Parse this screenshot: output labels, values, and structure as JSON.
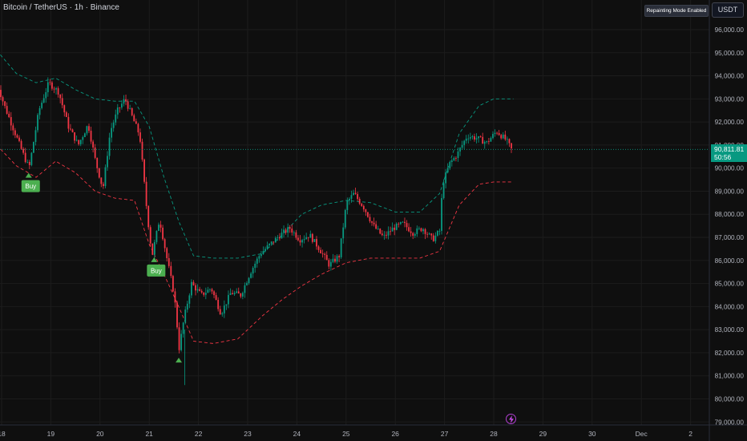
{
  "header": {
    "symbol_title": "Bitcoin / TetherUS · 1h · Binance",
    "repainting_badge": "Repainting Mode Enabled",
    "currency_button": "USDT"
  },
  "price_axis": {
    "ticks": [
      "96,000.00",
      "95,000.00",
      "94,000.00",
      "93,000.00",
      "92,000.00",
      "91,000.00",
      "90,000.00",
      "89,000.00",
      "88,000.00",
      "87,000.00",
      "86,000.00",
      "85,000.00",
      "84,000.00",
      "83,000.00",
      "82,000.00",
      "81,000.00",
      "80,000.00",
      "79,000.00"
    ]
  },
  "time_axis": {
    "ticks": [
      "18",
      "19",
      "20",
      "21",
      "22",
      "23",
      "24",
      "25",
      "26",
      "27",
      "28",
      "29",
      "30",
      "Dec",
      "2"
    ]
  },
  "current_price": {
    "price": "90,811.81",
    "countdown": "50:56"
  },
  "signals": [
    {
      "label": "Buy",
      "day": 18.55,
      "price": 89760
    },
    {
      "label": "Buy",
      "day": 21.1,
      "price": 86100
    },
    {
      "label": "",
      "day": 21.6,
      "price": 81750
    }
  ],
  "colors": {
    "background": "#0f0f0f",
    "bull": "#089981",
    "bear": "#f23645",
    "buy_label": "#4caf50",
    "upper_band": "#089981",
    "lower_band": "#f23645",
    "grid": "#1c1c1c"
  },
  "icons": {
    "alert": "lightning-icon"
  },
  "chart_data": {
    "type": "candlestick",
    "x_unit": "day of month (Nov)",
    "ylim": [
      79000,
      96500
    ],
    "price_path": [
      [
        17.9,
        94000
      ],
      [
        18.1,
        92700
      ],
      [
        18.3,
        91600
      ],
      [
        18.5,
        90500
      ],
      [
        18.6,
        90000
      ],
      [
        18.8,
        92500
      ],
      [
        19.0,
        93700
      ],
      [
        19.2,
        93300
      ],
      [
        19.4,
        91800
      ],
      [
        19.6,
        91000
      ],
      [
        19.8,
        91900
      ],
      [
        19.95,
        90300
      ],
      [
        20.1,
        89100
      ],
      [
        20.25,
        91600
      ],
      [
        20.4,
        92500
      ],
      [
        20.55,
        93000
      ],
      [
        20.7,
        92200
      ],
      [
        20.85,
        91400
      ],
      [
        21.0,
        88000
      ],
      [
        21.1,
        86200
      ],
      [
        21.25,
        87800
      ],
      [
        21.4,
        86100
      ],
      [
        21.55,
        84500
      ],
      [
        21.65,
        82200
      ],
      [
        21.75,
        83500
      ],
      [
        21.9,
        85000
      ],
      [
        22.1,
        84500
      ],
      [
        22.3,
        84800
      ],
      [
        22.5,
        83700
      ],
      [
        22.7,
        84600
      ],
      [
        22.9,
        84500
      ],
      [
        23.1,
        85500
      ],
      [
        23.3,
        86300
      ],
      [
        23.5,
        86700
      ],
      [
        23.7,
        87100
      ],
      [
        23.9,
        87400
      ],
      [
        24.1,
        86900
      ],
      [
        24.3,
        87100
      ],
      [
        24.5,
        86500
      ],
      [
        24.7,
        85800
      ],
      [
        24.9,
        86200
      ],
      [
        25.05,
        88500
      ],
      [
        25.2,
        88900
      ],
      [
        25.4,
        88300
      ],
      [
        25.6,
        87500
      ],
      [
        25.8,
        87000
      ],
      [
        26.0,
        87400
      ],
      [
        26.2,
        87600
      ],
      [
        26.4,
        87200
      ],
      [
        26.6,
        87400
      ],
      [
        26.8,
        86900
      ],
      [
        26.95,
        87300
      ],
      [
        27.0,
        89300
      ],
      [
        27.15,
        90200
      ],
      [
        27.3,
        90600
      ],
      [
        27.5,
        91400
      ],
      [
        27.7,
        91300
      ],
      [
        27.9,
        91100
      ],
      [
        28.1,
        91600
      ],
      [
        28.3,
        91200
      ],
      [
        28.4,
        90811
      ]
    ],
    "upper_band": [
      [
        17.9,
        95100
      ],
      [
        18.3,
        94100
      ],
      [
        18.7,
        93700
      ],
      [
        19.1,
        93900
      ],
      [
        19.5,
        93400
      ],
      [
        19.9,
        93000
      ],
      [
        20.3,
        92900
      ],
      [
        20.7,
        92900
      ],
      [
        21.0,
        91800
      ],
      [
        21.3,
        89600
      ],
      [
        21.6,
        87700
      ],
      [
        21.9,
        86200
      ],
      [
        22.3,
        86100
      ],
      [
        22.8,
        86100
      ],
      [
        23.3,
        86300
      ],
      [
        23.7,
        87100
      ],
      [
        24.1,
        88000
      ],
      [
        24.5,
        88400
      ],
      [
        25.0,
        88600
      ],
      [
        25.5,
        88500
      ],
      [
        26.0,
        88100
      ],
      [
        26.5,
        88100
      ],
      [
        26.9,
        88900
      ],
      [
        27.3,
        91500
      ],
      [
        27.7,
        92700
      ],
      [
        28.0,
        93000
      ],
      [
        28.4,
        93000
      ]
    ],
    "lower_band": [
      [
        17.9,
        91000
      ],
      [
        18.3,
        90100
      ],
      [
        18.7,
        89600
      ],
      [
        19.1,
        90300
      ],
      [
        19.5,
        89800
      ],
      [
        19.9,
        89000
      ],
      [
        20.3,
        88700
      ],
      [
        20.7,
        88600
      ],
      [
        21.0,
        86700
      ],
      [
        21.3,
        85400
      ],
      [
        21.6,
        84000
      ],
      [
        21.9,
        82500
      ],
      [
        22.3,
        82400
      ],
      [
        22.8,
        82600
      ],
      [
        23.3,
        83600
      ],
      [
        23.7,
        84300
      ],
      [
        24.1,
        84900
      ],
      [
        24.5,
        85400
      ],
      [
        25.0,
        85900
      ],
      [
        25.5,
        86100
      ],
      [
        26.0,
        86100
      ],
      [
        26.5,
        86100
      ],
      [
        26.9,
        86400
      ],
      [
        27.3,
        88400
      ],
      [
        27.7,
        89300
      ],
      [
        28.0,
        89400
      ],
      [
        28.4,
        89400
      ]
    ]
  }
}
